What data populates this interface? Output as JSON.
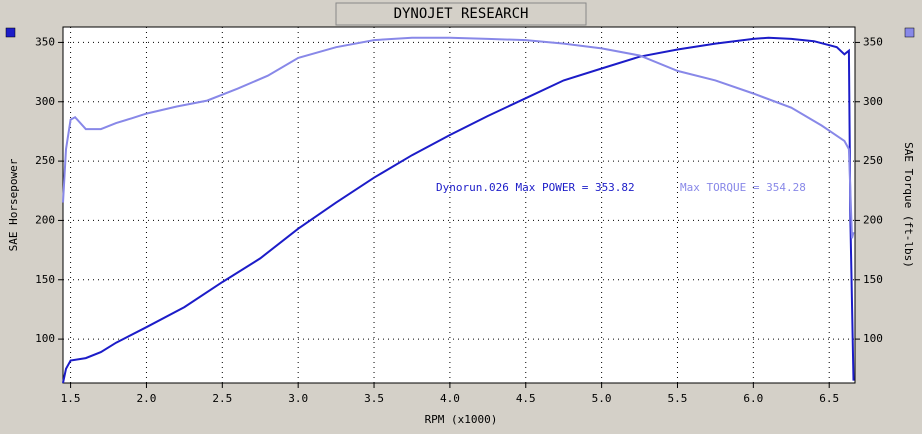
{
  "chart_data": {
    "type": "line",
    "title": "DYNOJET RESEARCH",
    "xlabel": "RPM (x1000)",
    "ylabel": "SAE Horsepower",
    "y2label": "SAE Torque (ft-lbs)",
    "annotations": [
      "Dynorun.026 Max POWER = 353.82",
      "Max TORQUE = 354.28"
    ],
    "xlim": [
      1.45,
      6.67
    ],
    "xticks": [
      1.5,
      {
        "value": 2,
        "label": "2.0"
      },
      2.5,
      {
        "value": 3,
        "label": "3.0"
      },
      3.5,
      {
        "value": 4,
        "label": "4.0"
      },
      4.5,
      {
        "value": 5,
        "label": "5.0"
      },
      5.5,
      {
        "value": 6,
        "label": "6.0"
      },
      6.5
    ],
    "ylim": [
      63,
      363
    ],
    "yticks": [
      100,
      150,
      200,
      250,
      300,
      350
    ],
    "y2lim": [
      63,
      363
    ],
    "y2ticks": [
      100,
      150,
      200,
      250,
      300,
      350
    ],
    "grid": true,
    "series": [
      {
        "name": "SAE Horsepower",
        "color": "#1c1cc8",
        "x": [
          1.45,
          1.47,
          1.5,
          1.6,
          1.7,
          1.8,
          2.0,
          2.25,
          2.5,
          2.75,
          3.0,
          3.25,
          3.5,
          3.75,
          4.0,
          4.25,
          4.5,
          4.75,
          5.0,
          5.25,
          5.5,
          5.75,
          6.0,
          6.1,
          6.25,
          6.4,
          6.55,
          6.6,
          6.63,
          6.64,
          6.66
        ],
        "values": [
          63,
          75,
          82,
          84,
          89,
          97,
          110,
          127,
          148,
          168,
          193,
          215,
          236,
          255,
          272,
          288,
          303,
          318,
          328,
          338,
          344,
          349,
          353,
          354,
          353,
          351,
          346,
          340,
          343,
          200,
          65
        ]
      },
      {
        "name": "SAE Torque (ft-lbs)",
        "color": "#8888e8",
        "axis": "y2",
        "x": [
          1.45,
          1.47,
          1.5,
          1.53,
          1.6,
          1.7,
          1.8,
          1.9,
          2.0,
          2.2,
          2.4,
          2.6,
          2.8,
          3.0,
          3.25,
          3.5,
          3.75,
          4.0,
          4.25,
          4.5,
          4.75,
          5.0,
          5.25,
          5.5,
          5.75,
          6.0,
          6.25,
          6.45,
          6.6,
          6.63,
          6.65,
          6.66
        ],
        "values": [
          215,
          260,
          285,
          287,
          277,
          277,
          282,
          286,
          290,
          296,
          301,
          311,
          322,
          337,
          346,
          352,
          354,
          354,
          353,
          352,
          349,
          345,
          339,
          326,
          318,
          307,
          295,
          280,
          267,
          260,
          185,
          190
        ]
      }
    ]
  }
}
